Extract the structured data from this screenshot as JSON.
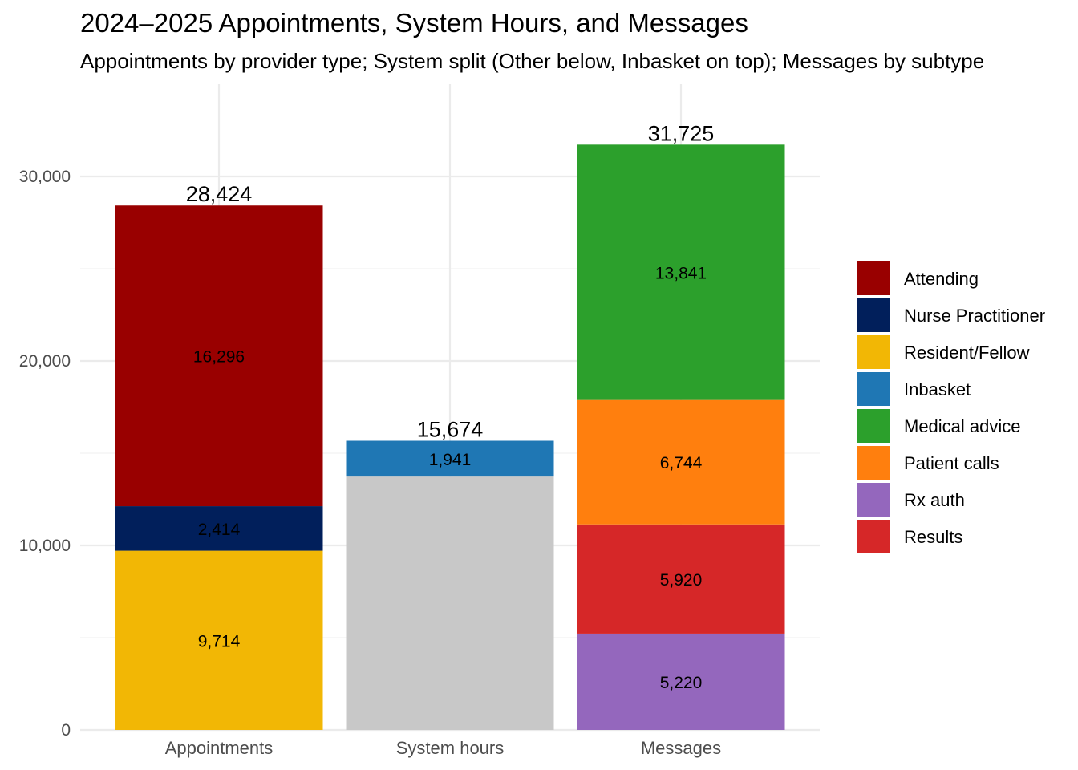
{
  "chart_data": {
    "type": "bar",
    "stacked": true,
    "title": "2024–2025 Appointments, System Hours, and Messages",
    "subtitle": "Appointments by provider type; System split (Other below, Inbasket on top); Messages by subtype",
    "xlabel": "",
    "ylabel": "",
    "ylim": [
      0,
      34500
    ],
    "yticks": [
      0,
      10000,
      20000,
      30000
    ],
    "ytick_labels": [
      "0",
      "10,000",
      "20,000",
      "30,000"
    ],
    "grid": true,
    "legend_position": "right",
    "categories": [
      {
        "name": "Appointments",
        "total_label": "28,424",
        "segments": [
          {
            "series": "Resident/Fellow",
            "value": 9714,
            "label": "9,714"
          },
          {
            "series": "Nurse Practitioner",
            "value": 2414,
            "label": "2,414"
          },
          {
            "series": "Attending",
            "value": 16296,
            "label": "16,296"
          }
        ]
      },
      {
        "name": "System hours",
        "total_label": "15,674",
        "segments": [
          {
            "series": "Other",
            "value": 13733,
            "label": ""
          },
          {
            "series": "Inbasket",
            "value": 1941,
            "label": "1,941"
          }
        ]
      },
      {
        "name": "Messages",
        "total_label": "31,725",
        "segments": [
          {
            "series": "Rx auth",
            "value": 5220,
            "label": "5,220"
          },
          {
            "series": "Results",
            "value": 5920,
            "label": "5,920"
          },
          {
            "series": "Patient calls",
            "value": 6744,
            "label": "6,744"
          },
          {
            "series": "Medical advice",
            "value": 13841,
            "label": "13,841"
          }
        ]
      }
    ],
    "colors": {
      "Attending": "#990000",
      "Nurse Practitioner": "#011f5b",
      "Resident/Fellow": "#f2b705",
      "Inbasket": "#1f77b4",
      "Medical advice": "#2ca02c",
      "Patient calls": "#ff7f0e",
      "Rx auth": "#9467bd",
      "Results": "#d62728",
      "Other": "#c8c8c8"
    },
    "legend": [
      "Attending",
      "Nurse Practitioner",
      "Resident/Fellow",
      "Inbasket",
      "Medical advice",
      "Patient calls",
      "Rx auth",
      "Results"
    ]
  }
}
